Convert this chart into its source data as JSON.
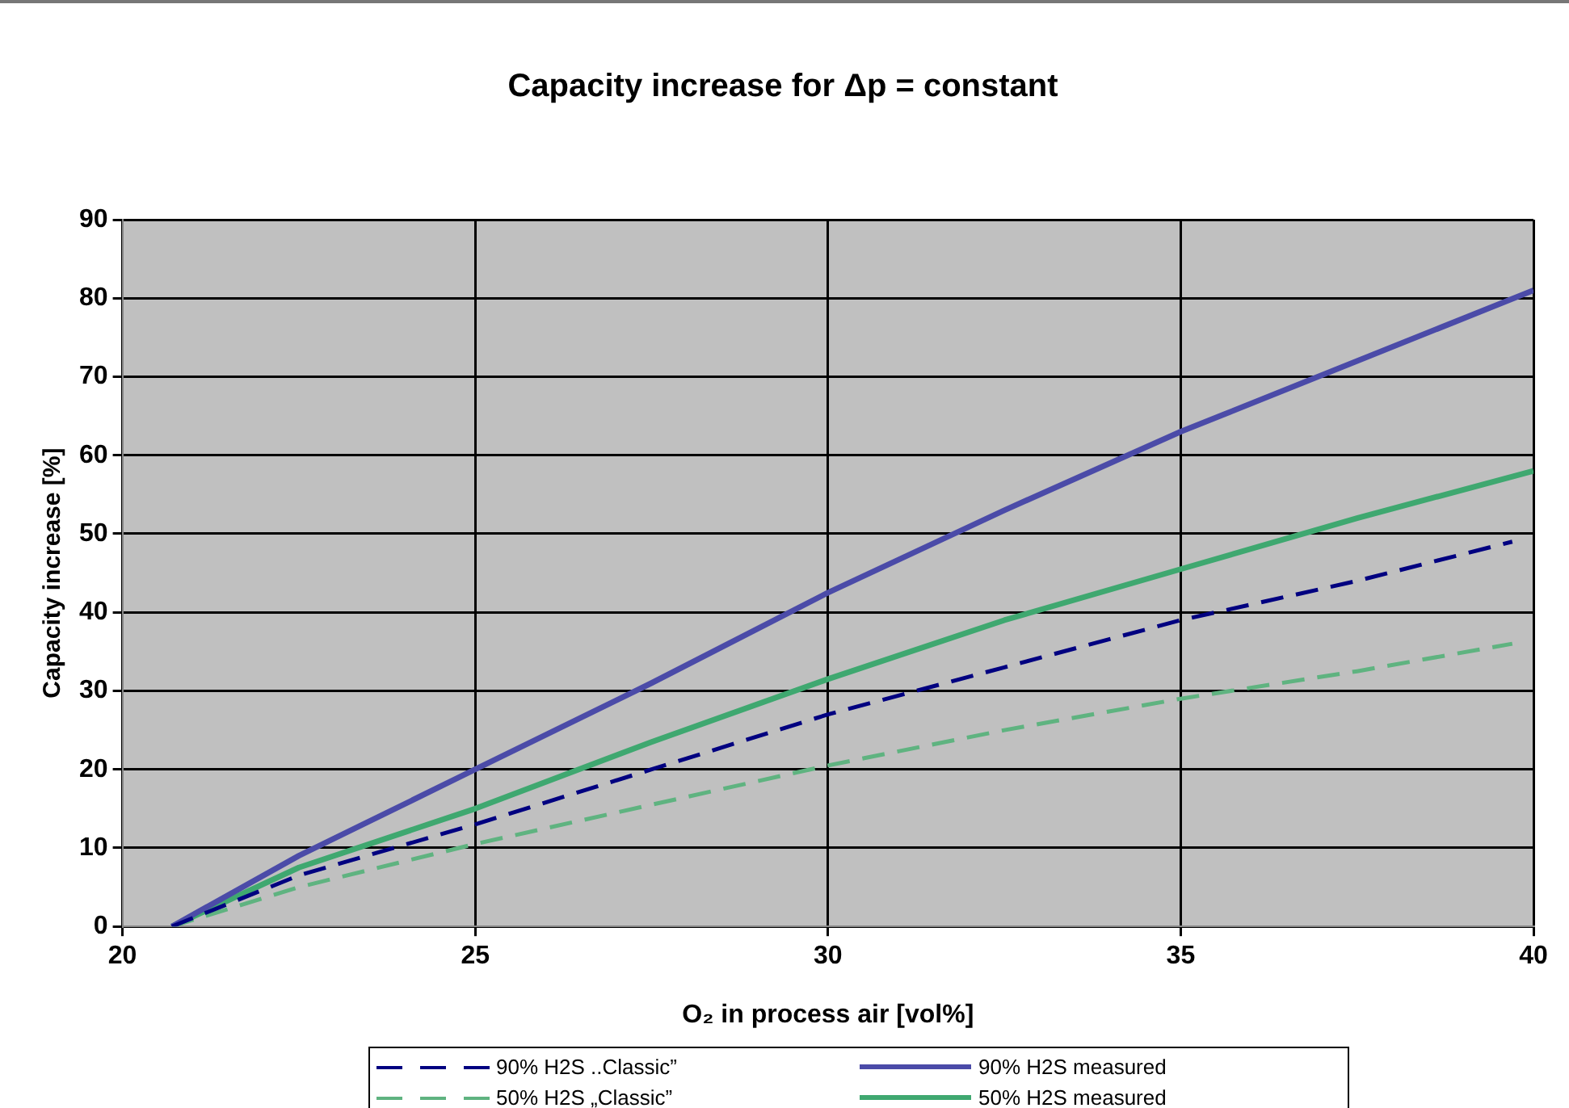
{
  "chart_data": {
    "type": "line",
    "title": "Capacity increase for Δp = constant",
    "xlabel": "O₂ in process air [vol%]",
    "ylabel": "Capacity increase [%]",
    "xlim": [
      20,
      40
    ],
    "xticks": [
      20,
      25,
      30,
      35,
      40
    ],
    "ylim": [
      0,
      90
    ],
    "yticks": [
      0,
      10,
      20,
      30,
      40,
      50,
      60,
      70,
      80,
      90
    ],
    "grid": true,
    "legend": "bottom",
    "marker": "none",
    "series": [
      {
        "name": "90% H2S ..Classic”",
        "color": "#000080",
        "line_style": "dashed",
        "x": [
          20.7,
          22.5,
          25,
          27.5,
          30,
          32.5,
          35,
          37.5,
          39.7
        ],
        "values": [
          0,
          6.5,
          13,
          20,
          27,
          33,
          39,
          44,
          49
        ]
      },
      {
        "name": "90% H2S measured",
        "color": "#4b4ba8",
        "line_style": "solid",
        "x": [
          20.7,
          22.5,
          25,
          27.5,
          30,
          32.5,
          35,
          37.5,
          40
        ],
        "values": [
          0,
          9,
          20,
          31,
          42.5,
          53,
          63,
          72,
          81
        ]
      },
      {
        "name": "50% H2S „Classic”",
        "color": "#5fb380",
        "line_style": "dashed",
        "x": [
          20.7,
          22.5,
          25,
          27.5,
          30,
          32.5,
          35,
          37.5,
          39.7
        ],
        "values": [
          0,
          5,
          10.5,
          15.5,
          20.5,
          25,
          29,
          32.5,
          36
        ]
      },
      {
        "name": "50% H2S measured",
        "color": "#3fa870",
        "line_style": "solid",
        "x": [
          20.7,
          22.5,
          25,
          27.5,
          30,
          32.5,
          35,
          37.5,
          40
        ],
        "values": [
          0,
          7.5,
          15,
          23.5,
          31.5,
          39,
          45.5,
          52,
          58
        ]
      }
    ]
  }
}
